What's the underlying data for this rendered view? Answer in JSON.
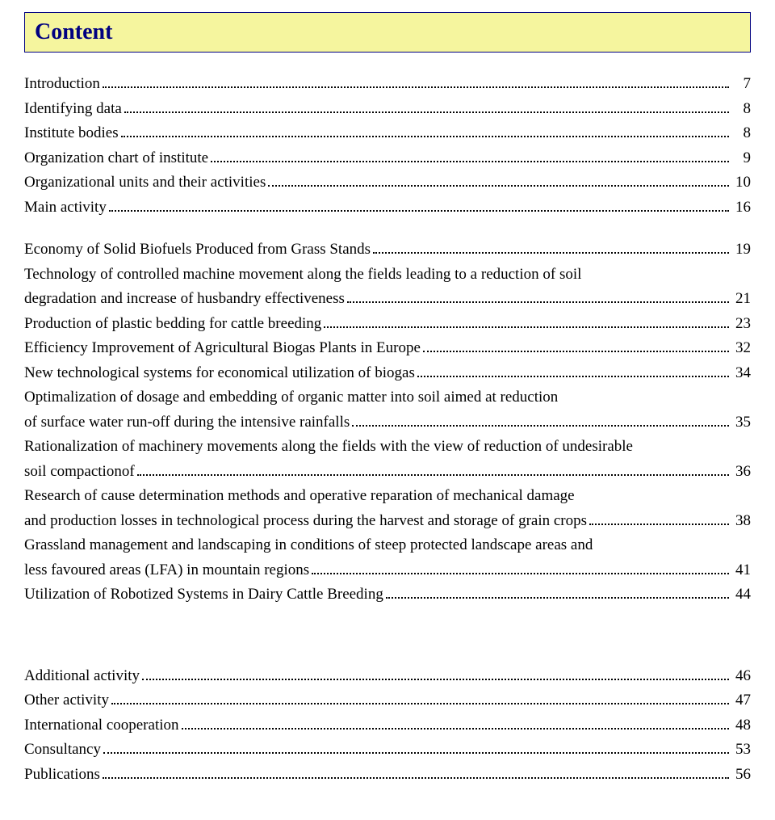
{
  "title": "Content",
  "colors": {
    "title_box_bg": "#f5f59e",
    "title_box_border": "#000080",
    "title_text": "#000080",
    "body_text": "#000000",
    "page_bg": "#ffffff"
  },
  "typography": {
    "title_fontsize": 28,
    "body_fontsize": 19,
    "font_family": "Times New Roman"
  },
  "groups": [
    {
      "spacer_before": "none",
      "entries": [
        {
          "lines": [
            "Introduction"
          ],
          "page": "7"
        },
        {
          "lines": [
            "Identifying data"
          ],
          "page": "8"
        },
        {
          "lines": [
            "Institute bodies"
          ],
          "page": "8"
        },
        {
          "lines": [
            "Organization chart of institute"
          ],
          "page": "9"
        },
        {
          "lines": [
            "Organizational units and their activities"
          ],
          "page": "10"
        },
        {
          "lines": [
            "Main activity"
          ],
          "page": "16"
        }
      ]
    },
    {
      "spacer_before": "mid",
      "entries": [
        {
          "lines": [
            "Economy of Solid Biofuels Produced from Grass Stands"
          ],
          "page": "19"
        },
        {
          "lines": [
            "Technology of controlled machine movement along the fields leading to a reduction of soil",
            "degradation and increase of husbandry effectiveness"
          ],
          "page": "21"
        },
        {
          "lines": [
            "Production of plastic bedding for cattle breeding"
          ],
          "page": "23"
        },
        {
          "lines": [
            "Efficiency Improvement of Agricultural Biogas Plants in Europe"
          ],
          "page": "32"
        },
        {
          "lines": [
            "New technological systems for economical utilization of biogas"
          ],
          "page": "34"
        },
        {
          "lines": [
            "Optimalization of dosage and embedding of organic matter into soil aimed at reduction",
            "of surface water run-off during the intensive rainfalls"
          ],
          "page": "35"
        },
        {
          "lines": [
            "Rationalization of machinery movements along the fields with the view of reduction of undesirable",
            "soil compactionof"
          ],
          "page": "36"
        },
        {
          "lines": [
            "Research of cause determination methods and operative reparation of mechanical damage",
            "and production losses in technological process during the harvest and storage of grain crops"
          ],
          "page": "38"
        },
        {
          "lines": [
            "Grassland management and landscaping in conditions of steep protected landscape areas and",
            "less favoured areas (LFA) in mountain regions"
          ],
          "page": "41"
        },
        {
          "lines": [
            "Utilization of Robotized Systems in Dairy Cattle Breeding"
          ],
          "page": "44"
        }
      ]
    },
    {
      "spacer_before": "large",
      "entries": [
        {
          "lines": [
            "Additional activity"
          ],
          "page": "46"
        },
        {
          "lines": [
            "Other activity"
          ],
          "page": "47"
        },
        {
          "lines": [
            "International cooperation"
          ],
          "page": "48"
        },
        {
          "lines": [
            "Consultancy"
          ],
          "page": "53"
        },
        {
          "lines": [
            "Publications"
          ],
          "page": "56"
        }
      ]
    }
  ]
}
